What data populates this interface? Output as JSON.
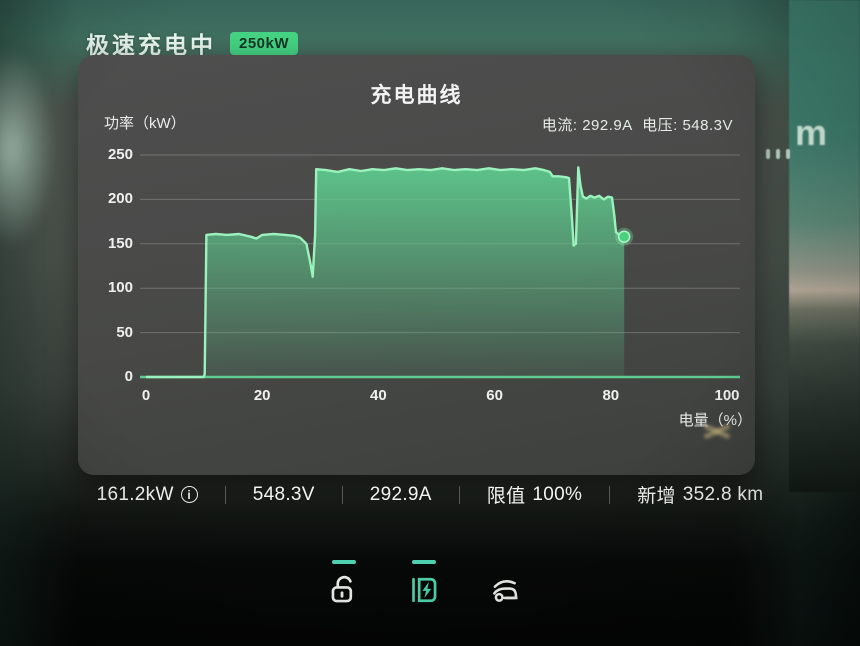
{
  "status_header": {
    "title": "极速充电中",
    "badge": "250kW"
  },
  "panel": {
    "title": "充电曲线",
    "meta": {
      "current_label": "电流:",
      "current_value": "292.9A",
      "voltage_label": "电压:",
      "voltage_value": "548.3V"
    }
  },
  "chart_data": {
    "type": "area",
    "title": "充电曲线",
    "xlabel": "电量（%）",
    "ylabel": "功率（kW）",
    "xlim": [
      0,
      100
    ],
    "ylim": [
      0,
      250
    ],
    "x_ticks": [
      0,
      20,
      40,
      60,
      80,
      100
    ],
    "y_ticks": [
      0,
      50,
      100,
      150,
      200,
      250
    ],
    "grid": "horizontal",
    "line_color": "#9bf2bd",
    "fill_color": "#5ecd8f",
    "baseline_color": "#5fcd90",
    "gridline_color": "rgba(255,255,255,0.22)",
    "series": [
      {
        "name": "charging-power",
        "points": [
          [
            0,
            0
          ],
          [
            9.9,
            0
          ],
          [
            10.1,
            3
          ],
          [
            10.4,
            160
          ],
          [
            12,
            161
          ],
          [
            14,
            160
          ],
          [
            16,
            161
          ],
          [
            18,
            158
          ],
          [
            19,
            156
          ],
          [
            20,
            160
          ],
          [
            22,
            161
          ],
          [
            24,
            160
          ],
          [
            25.5,
            159
          ],
          [
            26.5,
            157
          ],
          [
            27.6,
            150
          ],
          [
            28.3,
            128
          ],
          [
            28.7,
            113
          ],
          [
            29.1,
            160
          ],
          [
            29.3,
            234
          ],
          [
            31,
            233
          ],
          [
            33,
            231
          ],
          [
            35,
            234
          ],
          [
            37,
            232
          ],
          [
            39,
            234
          ],
          [
            41,
            233
          ],
          [
            43,
            235
          ],
          [
            45,
            233
          ],
          [
            47,
            234
          ],
          [
            49,
            233
          ],
          [
            51,
            235
          ],
          [
            53,
            233
          ],
          [
            55,
            234
          ],
          [
            57,
            233
          ],
          [
            59,
            235
          ],
          [
            61,
            233
          ],
          [
            63,
            234
          ],
          [
            65,
            233
          ],
          [
            67,
            235
          ],
          [
            68.5,
            233
          ],
          [
            69.5,
            231
          ],
          [
            70,
            226
          ],
          [
            71,
            226
          ],
          [
            72.3,
            225
          ],
          [
            72.8,
            224
          ],
          [
            73.3,
            180
          ],
          [
            73.6,
            148
          ],
          [
            74,
            150
          ],
          [
            74.4,
            236
          ],
          [
            74.8,
            215
          ],
          [
            75.2,
            203
          ],
          [
            75.8,
            201
          ],
          [
            76.5,
            204
          ],
          [
            77.2,
            202
          ],
          [
            78,
            204
          ],
          [
            78.8,
            200
          ],
          [
            79.5,
            203
          ],
          [
            80.2,
            202
          ],
          [
            80.6,
            182
          ],
          [
            80.9,
            163
          ],
          [
            81.5,
            160
          ],
          [
            82.3,
            158
          ]
        ]
      }
    ],
    "marker": {
      "x": 82.3,
      "y": 158
    }
  },
  "stats_bar": {
    "items": [
      {
        "value": "161.2kW",
        "has_info_icon": true
      },
      {
        "value": "548.3V"
      },
      {
        "value": "292.9A"
      },
      {
        "label": "限值",
        "value": "100%"
      },
      {
        "label": "新增",
        "value": "352.8 km"
      }
    ],
    "info_icon_glyph": "i"
  },
  "dock": {
    "items": [
      {
        "name": "unlock",
        "active": true
      },
      {
        "name": "charge-port",
        "active": true
      },
      {
        "name": "trunk",
        "active": false
      }
    ]
  },
  "background": {
    "wallpaper_letter": "m"
  }
}
